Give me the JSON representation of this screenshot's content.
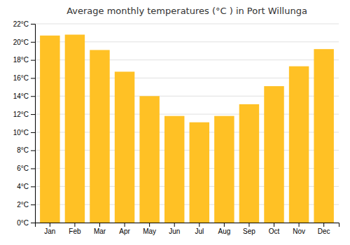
{
  "chart_data": {
    "type": "bar",
    "title": "Average monthly temperatures (°C ) in Port Willunga",
    "categories": [
      "Jan",
      "Feb",
      "Mar",
      "Apr",
      "May",
      "Jun",
      "Jul",
      "Aug",
      "Sep",
      "Oct",
      "Nov",
      "Dec"
    ],
    "values": [
      20.7,
      20.8,
      19.1,
      16.7,
      14.0,
      11.8,
      11.1,
      11.8,
      13.1,
      15.1,
      17.3,
      19.2
    ],
    "color": "#FFC125",
    "ylim": [
      0,
      22
    ],
    "yticks": [
      {
        "value": 0,
        "label": "0°C"
      },
      {
        "value": 2,
        "label": "2°C"
      },
      {
        "value": 4,
        "label": "4°C"
      },
      {
        "value": 6,
        "label": "6°C"
      },
      {
        "value": 8,
        "label": "8°C"
      },
      {
        "value": 10,
        "label": "10°C"
      },
      {
        "value": 12,
        "label": "12°C"
      },
      {
        "value": 14,
        "label": "14°C"
      },
      {
        "value": 16,
        "label": "16°C"
      },
      {
        "value": 18,
        "label": "18°C"
      },
      {
        "value": 20,
        "label": "20°C"
      },
      {
        "value": 22,
        "label": "22°C"
      }
    ],
    "grid": true
  }
}
